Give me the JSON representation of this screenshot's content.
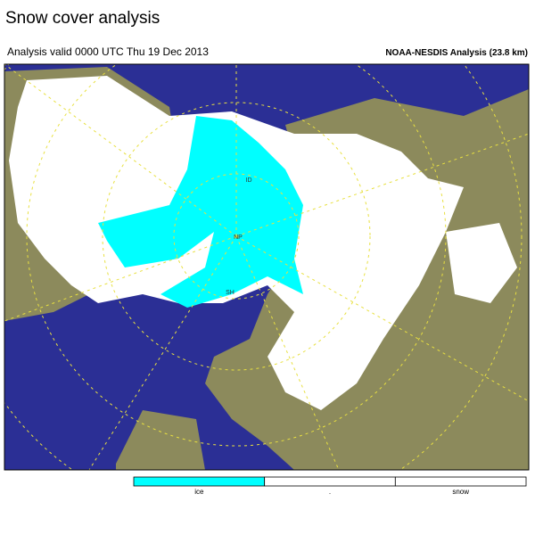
{
  "header": {
    "title": "Snow cover analysis",
    "valid": "Analysis valid 0000 UTC  Thu 19 Dec 2013",
    "source": "NOAA-NESDIS Analysis (23.8 km)"
  },
  "map": {
    "labels": [
      "ID",
      "NP",
      "SH"
    ]
  },
  "legend": {
    "items": [
      {
        "label": "ice",
        "color": "#00ffff"
      },
      {
        "label": ".",
        "color": "#ffffff"
      },
      {
        "label": "snow",
        "color": "#ffffff"
      }
    ]
  }
}
